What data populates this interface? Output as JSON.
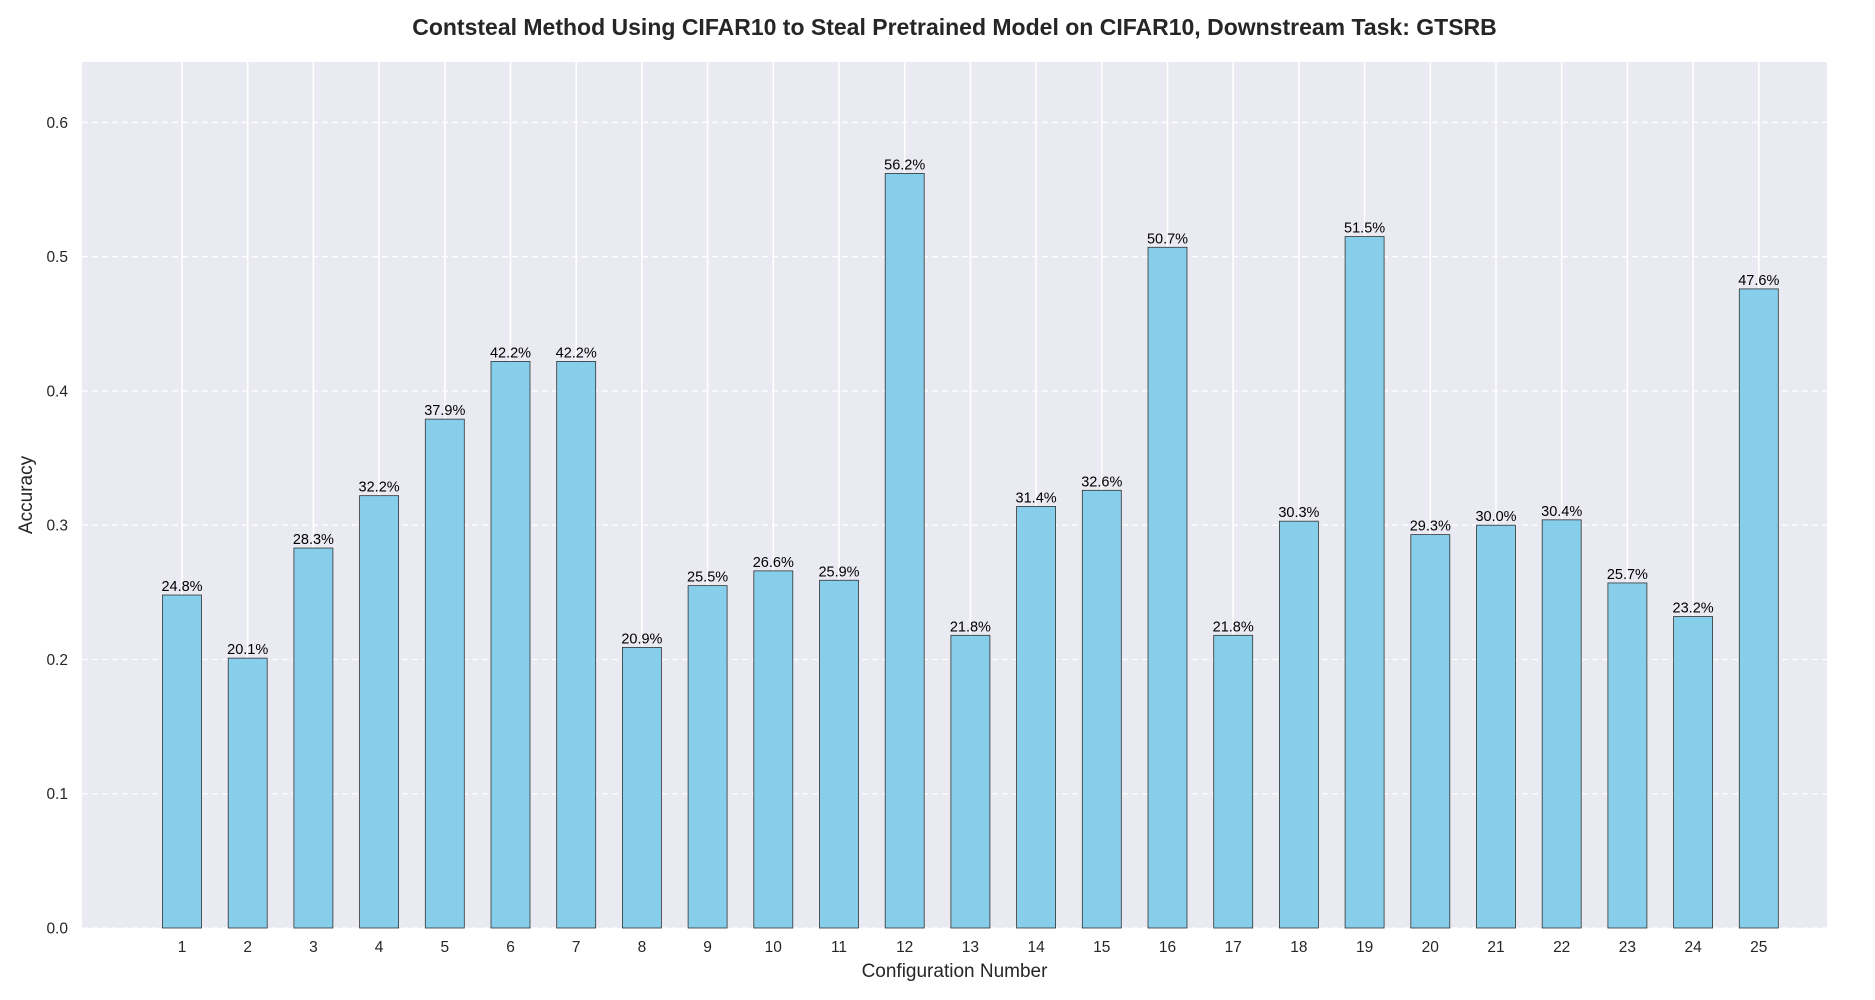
{
  "chart_data": {
    "type": "bar",
    "title": "Contsteal Method Using CIFAR10 to Steal Pretrained Model on CIFAR10, Downstream Task: GTSRB",
    "xlabel": "Configuration Number",
    "ylabel": "Accuracy",
    "categories": [
      "1",
      "2",
      "3",
      "4",
      "5",
      "6",
      "7",
      "8",
      "9",
      "10",
      "11",
      "12",
      "13",
      "14",
      "15",
      "16",
      "17",
      "18",
      "19",
      "20",
      "21",
      "22",
      "23",
      "24",
      "25"
    ],
    "values": [
      0.248,
      0.201,
      0.283,
      0.322,
      0.379,
      0.422,
      0.422,
      0.209,
      0.255,
      0.266,
      0.259,
      0.562,
      0.218,
      0.314,
      0.326,
      0.507,
      0.218,
      0.303,
      0.515,
      0.293,
      0.3,
      0.304,
      0.257,
      0.232,
      0.476
    ],
    "data_labels": [
      "24.8%",
      "20.1%",
      "28.3%",
      "32.2%",
      "37.9%",
      "42.2%",
      "42.2%",
      "20.9%",
      "25.5%",
      "26.6%",
      "25.9%",
      "56.2%",
      "21.8%",
      "31.4%",
      "32.6%",
      "50.7%",
      "21.8%",
      "30.3%",
      "51.5%",
      "29.3%",
      "30.0%",
      "30.4%",
      "25.7%",
      "23.2%",
      "47.6%"
    ],
    "ylim": [
      0,
      0.645
    ],
    "yticks": [
      0.0,
      0.1,
      0.2,
      0.3,
      0.4,
      0.5,
      0.6
    ],
    "ytick_labels": [
      "0.0",
      "0.1",
      "0.2",
      "0.3",
      "0.4",
      "0.5",
      "0.6"
    ],
    "grid": true,
    "colors": {
      "bar_fill": "#87ceeb",
      "bar_edge": "#333333",
      "plot_background": "#eaeaf2",
      "grid_line": "#ffffff"
    }
  }
}
